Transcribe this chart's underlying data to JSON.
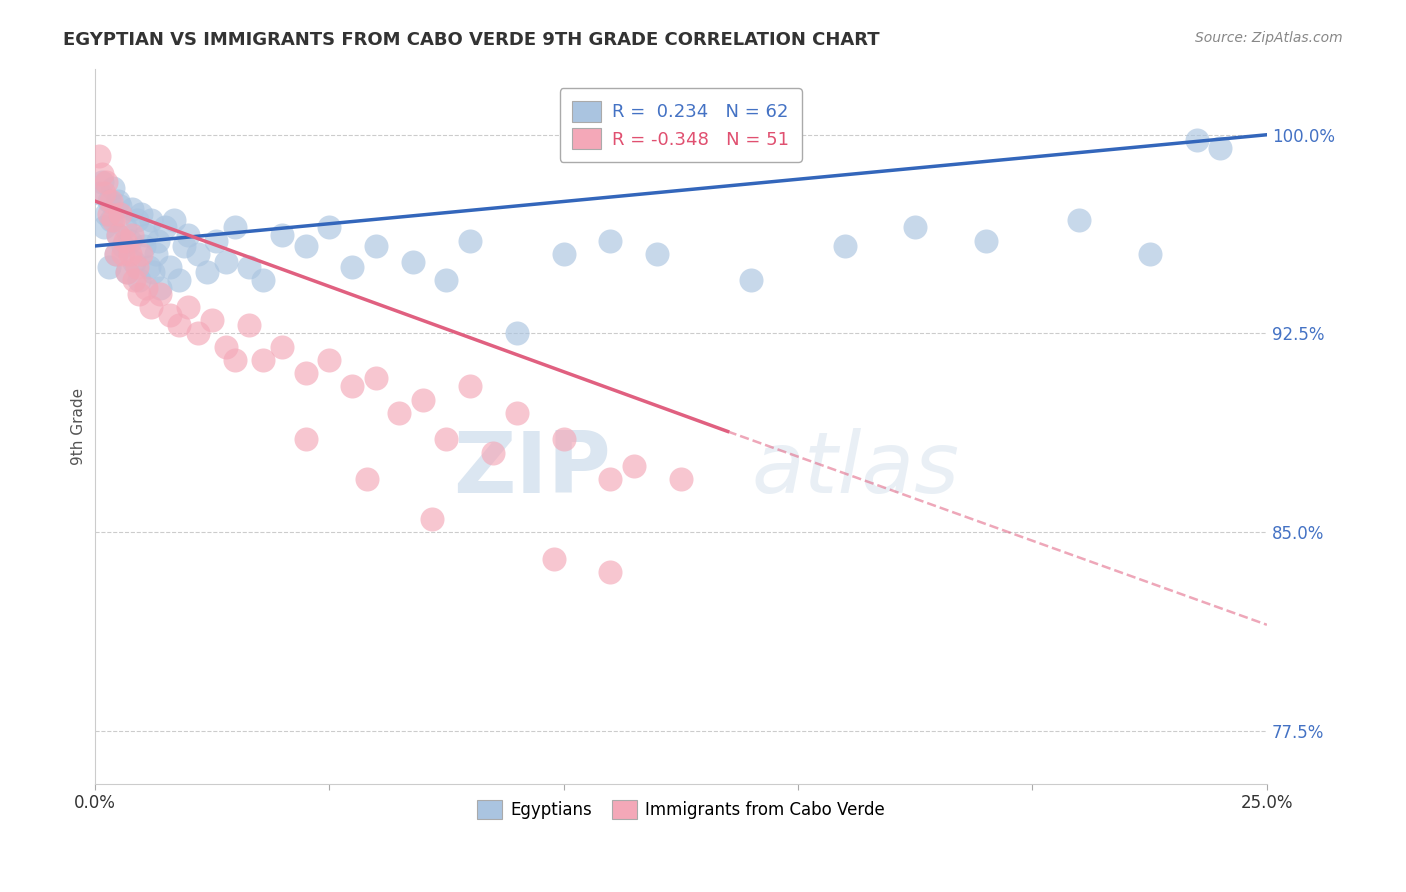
{
  "title": "EGYPTIAN VS IMMIGRANTS FROM CABO VERDE 9TH GRADE CORRELATION CHART",
  "source_text": "Source: ZipAtlas.com",
  "ylabel": "9th Grade",
  "xlim": [
    0.0,
    25.0
  ],
  "ylim": [
    75.5,
    102.5
  ],
  "yticks": [
    77.5,
    85.0,
    92.5,
    100.0
  ],
  "xticks": [
    0.0,
    5.0,
    10.0,
    15.0,
    20.0,
    25.0
  ],
  "ytick_labels": [
    "77.5%",
    "85.0%",
    "92.5%",
    "100.0%"
  ],
  "legend_r1": "R =  0.234",
  "legend_n1": "N = 62",
  "legend_r2": "R = -0.348",
  "legend_n2": "N = 51",
  "blue_color": "#aac4e0",
  "pink_color": "#f4a8b8",
  "blue_line_color": "#3366bb",
  "pink_line_color": "#e06080",
  "watermark_zip": "ZIP",
  "watermark_atlas": "atlas",
  "blue_scatter_x": [
    0.1,
    0.15,
    0.2,
    0.25,
    0.3,
    0.35,
    0.4,
    0.45,
    0.5,
    0.55,
    0.6,
    0.65,
    0.7,
    0.75,
    0.8,
    0.85,
    0.9,
    0.95,
    1.0,
    1.05,
    1.1,
    1.15,
    1.2,
    1.25,
    1.3,
    1.35,
    1.4,
    1.5,
    1.6,
    1.7,
    1.8,
    1.9,
    2.0,
    2.2,
    2.4,
    2.6,
    2.8,
    3.0,
    3.3,
    3.6,
    4.0,
    4.5,
    5.0,
    5.5,
    6.0,
    6.8,
    7.5,
    8.0,
    9.0,
    10.0,
    11.0,
    12.0,
    14.0,
    16.0,
    17.5,
    19.0,
    21.0,
    22.5,
    23.5,
    24.0,
    0.3,
    0.5
  ],
  "blue_scatter_y": [
    97.8,
    98.2,
    96.5,
    97.0,
    97.5,
    96.8,
    98.0,
    95.5,
    96.2,
    97.3,
    95.8,
    96.5,
    94.8,
    96.0,
    97.2,
    95.2,
    96.8,
    94.5,
    97.0,
    95.8,
    96.2,
    95.0,
    96.8,
    94.8,
    95.5,
    96.0,
    94.2,
    96.5,
    95.0,
    96.8,
    94.5,
    95.8,
    96.2,
    95.5,
    94.8,
    96.0,
    95.2,
    96.5,
    95.0,
    94.5,
    96.2,
    95.8,
    96.5,
    95.0,
    95.8,
    95.2,
    94.5,
    96.0,
    92.5,
    95.5,
    96.0,
    95.5,
    94.5,
    95.8,
    96.5,
    96.0,
    96.8,
    95.5,
    99.8,
    99.5,
    95.0,
    97.5
  ],
  "pink_scatter_x": [
    0.1,
    0.15,
    0.2,
    0.25,
    0.3,
    0.35,
    0.4,
    0.45,
    0.5,
    0.55,
    0.6,
    0.65,
    0.7,
    0.75,
    0.8,
    0.85,
    0.9,
    0.95,
    1.0,
    1.1,
    1.2,
    1.4,
    1.6,
    1.8,
    2.0,
    2.2,
    2.5,
    2.8,
    3.0,
    3.3,
    3.6,
    4.0,
    4.5,
    5.0,
    5.5,
    6.0,
    6.5,
    7.0,
    7.5,
    8.0,
    8.5,
    9.0,
    10.0,
    11.0,
    11.5,
    12.5,
    4.5,
    5.8,
    7.2,
    9.8,
    11.0
  ],
  "pink_scatter_y": [
    99.2,
    98.5,
    97.8,
    98.2,
    97.0,
    97.5,
    96.8,
    95.5,
    96.2,
    97.0,
    95.5,
    96.0,
    94.8,
    95.5,
    96.2,
    94.5,
    95.0,
    94.0,
    95.5,
    94.2,
    93.5,
    94.0,
    93.2,
    92.8,
    93.5,
    92.5,
    93.0,
    92.0,
    91.5,
    92.8,
    91.5,
    92.0,
    91.0,
    91.5,
    90.5,
    90.8,
    89.5,
    90.0,
    88.5,
    90.5,
    88.0,
    89.5,
    88.5,
    87.0,
    87.5,
    87.0,
    88.5,
    87.0,
    85.5,
    84.0,
    83.5
  ],
  "blue_line_x0": 0.0,
  "blue_line_x1": 25.0,
  "blue_line_y0": 95.8,
  "blue_line_y1": 100.0,
  "pink_solid_x0": 0.0,
  "pink_solid_x1": 13.5,
  "pink_solid_y0": 97.5,
  "pink_solid_y1": 88.8,
  "pink_dash_x0": 13.5,
  "pink_dash_x1": 25.0,
  "pink_dash_y0": 88.8,
  "pink_dash_y1": 81.5
}
